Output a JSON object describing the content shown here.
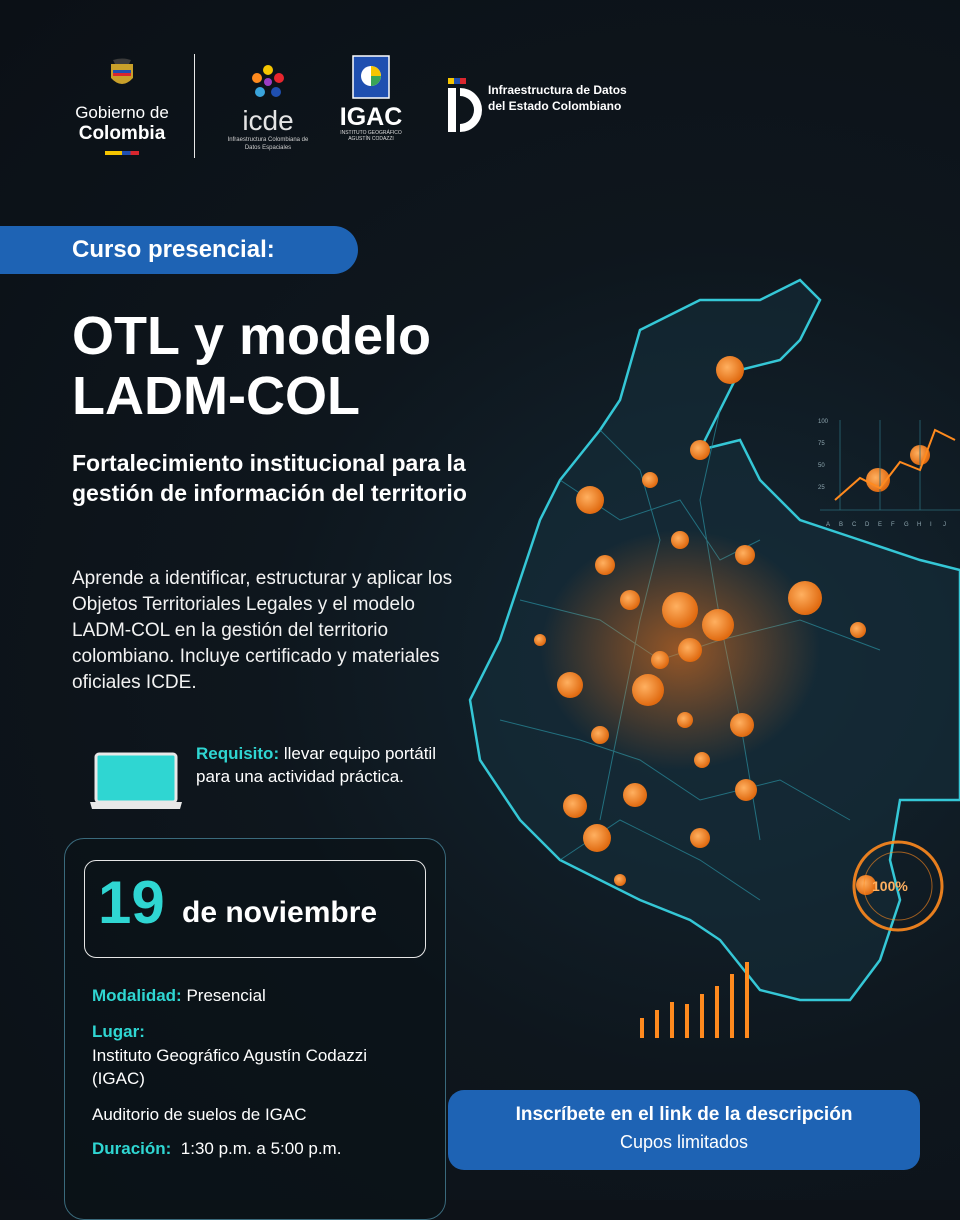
{
  "header": {
    "gobierno": {
      "line1": "Gobierno de",
      "line2": "Colombia"
    },
    "icde": {
      "name": "icde",
      "subtitle": "Infraestructura Colombiana de Datos Espaciales"
    },
    "igac": {
      "name": "IGAC",
      "subtitle": "INSTITUTO GEOGRÁFICO AGUSTÍN CODAZZI"
    },
    "ide": {
      "text": "Infraestructura de Datos del Estado Colombiano"
    }
  },
  "banner": {
    "label": "Curso presencial:"
  },
  "title": {
    "line1": "OTL y modelo",
    "line2": "LADM-COL"
  },
  "subtitle": "Fortalecimiento institucional para la gestión de información del territorio",
  "description": "Aprende a identificar, estructurar y aplicar los Objetos Territoriales Legales y el modelo LADM-COL en la gestión del territorio colombiano. Incluye certificado y materiales oficiales ICDE.",
  "requirement": {
    "label": "Requisito:",
    "text": " llevar equipo portátil para una actividad práctica."
  },
  "event": {
    "day": "19",
    "month": "de noviembre",
    "modalidad_label": "Modalidad:",
    "modalidad": " Presencial",
    "lugar_label": "Lugar:",
    "lugar": "Instituto Geográfico Agustín Codazzi (IGAC)",
    "auditorio": "Auditorio de suelos de IGAC",
    "duracion_label": "Duración:",
    "duracion": "1:30 p.m. a 5:00 p.m."
  },
  "cta": {
    "line1": "Inscríbete en el link de la descripción",
    "line2": "Cupos limitados"
  },
  "decor": {
    "gauge_value": "100%",
    "chart_ticks": [
      "100",
      "75",
      "50",
      "25"
    ],
    "chart_letters": [
      "A",
      "B",
      "C",
      "D",
      "E",
      "F",
      "G",
      "H",
      "I",
      "J"
    ]
  },
  "colors": {
    "accent": "#2fd6d2",
    "brand_blue": "#1e63b4",
    "orange": "#ff8a1e",
    "map_line": "#35c7d6"
  }
}
